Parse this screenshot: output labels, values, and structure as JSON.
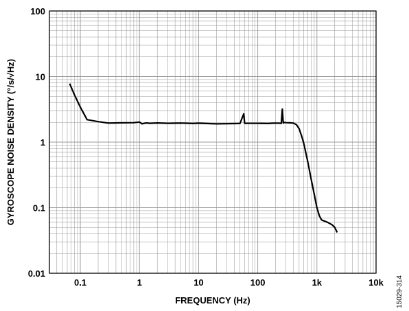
{
  "chart_data": {
    "type": "line",
    "x_scale": "log",
    "y_scale": "log",
    "xlim": [
      0.03,
      10000
    ],
    "ylim": [
      0.01,
      100
    ],
    "grid": true,
    "xlabel": "FREQUENCY (Hz)",
    "ylabel": "GYROSCOPE NOISE DENSITY (°/s/√Hz)",
    "x_ticks": [
      0.1,
      1,
      10,
      100,
      1000,
      10000
    ],
    "x_tick_labels": [
      "0.1",
      "1",
      "10",
      "100",
      "1k",
      "10k"
    ],
    "y_ticks": [
      0.01,
      0.1,
      1,
      10,
      100
    ],
    "y_tick_labels": [
      "0.01",
      "0.1",
      "1",
      "10",
      "100"
    ],
    "series": [
      {
        "x": [
          0.066,
          0.08,
          0.1,
          0.13,
          0.2,
          0.3,
          0.5,
          0.8,
          1,
          1.1,
          1.3,
          1.5,
          2,
          3,
          5,
          8,
          10,
          20,
          50,
          58,
          60,
          100,
          150,
          200,
          250,
          260,
          270,
          280,
          300,
          350,
          400,
          450,
          500,
          550,
          600,
          700,
          800,
          900,
          1000,
          1100,
          1200,
          1500,
          1800,
          2000,
          2200
        ],
        "y": [
          7.8,
          5.2,
          3.4,
          2.2,
          2.05,
          1.95,
          1.97,
          1.98,
          2.02,
          1.9,
          1.96,
          1.93,
          1.96,
          1.93,
          1.95,
          1.92,
          1.94,
          1.9,
          1.92,
          2.7,
          1.93,
          1.93,
          1.92,
          1.95,
          1.93,
          3.2,
          1.95,
          2.0,
          1.98,
          1.97,
          1.95,
          1.85,
          1.6,
          1.25,
          0.95,
          0.5,
          0.27,
          0.16,
          0.1,
          0.075,
          0.065,
          0.06,
          0.055,
          0.05,
          0.042
        ]
      }
    ]
  },
  "figure_id": "15029-314"
}
